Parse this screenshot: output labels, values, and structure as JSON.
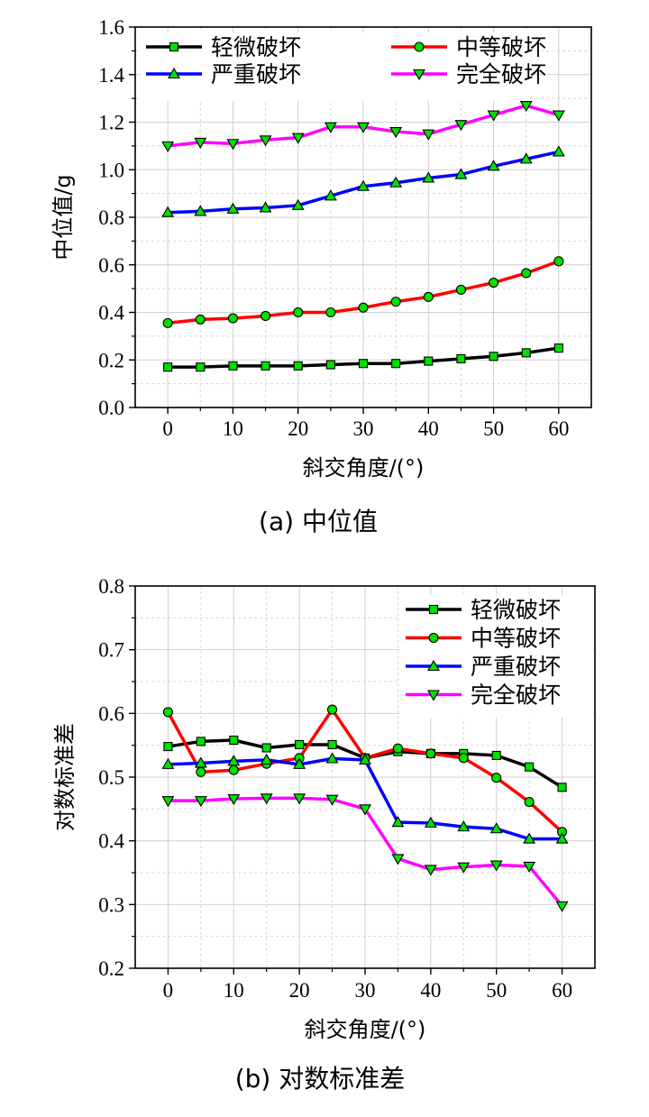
{
  "chart_data": [
    {
      "type": "line",
      "title": "",
      "caption": "(a)  中位值",
      "xlabel": "斜交角度/(°)",
      "ylabel": "中位值/g",
      "xlim": [
        -5,
        65
      ],
      "ylim": [
        0.0,
        1.6
      ],
      "xticks": [
        0,
        10,
        20,
        30,
        40,
        50,
        60
      ],
      "yticks": [
        0.0,
        0.2,
        0.4,
        0.6,
        0.8,
        1.0,
        1.2,
        1.4,
        1.6
      ],
      "ytick_labels": [
        "0.0",
        "0.2",
        "0.4",
        "0.6",
        "0.8",
        "1.0",
        "1.2",
        "1.4",
        "1.6"
      ],
      "grid": true,
      "legend_placement": "top-left",
      "legend_columns": 2,
      "x": [
        0,
        5,
        10,
        15,
        20,
        25,
        30,
        35,
        40,
        45,
        50,
        55,
        60
      ],
      "series": [
        {
          "name": "轻微破坏",
          "color": "#000000",
          "marker": "square",
          "values": [
            0.17,
            0.17,
            0.175,
            0.175,
            0.175,
            0.18,
            0.185,
            0.185,
            0.195,
            0.205,
            0.215,
            0.23,
            0.25
          ]
        },
        {
          "name": "中等破坏",
          "color": "#ff0000",
          "marker": "circle",
          "values": [
            0.355,
            0.37,
            0.375,
            0.385,
            0.4,
            0.4,
            0.42,
            0.445,
            0.465,
            0.495,
            0.525,
            0.565,
            0.615
          ]
        },
        {
          "name": "严重破坏",
          "color": "#0000ff",
          "marker": "triangle-up",
          "values": [
            0.82,
            0.825,
            0.835,
            0.84,
            0.85,
            0.89,
            0.93,
            0.945,
            0.965,
            0.98,
            1.015,
            1.045,
            1.075
          ]
        },
        {
          "name": "完全破坏",
          "color": "#ff00ff",
          "marker": "triangle-down",
          "values": [
            1.1,
            1.115,
            1.11,
            1.125,
            1.135,
            1.18,
            1.18,
            1.16,
            1.15,
            1.19,
            1.23,
            1.27,
            1.23
          ]
        }
      ]
    },
    {
      "type": "line",
      "title": "",
      "caption": "(b)  对数标准差",
      "xlabel": "斜交角度/(°)",
      "ylabel": "对数标准差",
      "xlim": [
        -5,
        65
      ],
      "ylim": [
        0.2,
        0.8
      ],
      "xticks": [
        0,
        10,
        20,
        30,
        40,
        50,
        60
      ],
      "yticks": [
        0.2,
        0.3,
        0.4,
        0.5,
        0.6,
        0.7,
        0.8
      ],
      "ytick_labels": [
        "0.2",
        "0.3",
        "0.4",
        "0.5",
        "0.6",
        "0.7",
        "0.8"
      ],
      "grid": true,
      "legend_placement": "top-right",
      "legend_columns": 1,
      "x": [
        0,
        5,
        10,
        15,
        20,
        25,
        30,
        35,
        40,
        45,
        50,
        55,
        60
      ],
      "series": [
        {
          "name": "轻微破坏",
          "color": "#000000",
          "marker": "square",
          "values": [
            0.548,
            0.556,
            0.558,
            0.546,
            0.551,
            0.551,
            0.53,
            0.54,
            0.537,
            0.537,
            0.534,
            0.516,
            0.484
          ]
        },
        {
          "name": "中等破坏",
          "color": "#ff0000",
          "marker": "circle",
          "values": [
            0.602,
            0.508,
            0.511,
            0.521,
            0.53,
            0.606,
            0.53,
            0.545,
            0.537,
            0.53,
            0.499,
            0.461,
            0.414
          ]
        },
        {
          "name": "严重破坏",
          "color": "#0000ff",
          "marker": "triangle-up",
          "values": [
            0.52,
            0.522,
            0.525,
            0.527,
            0.52,
            0.529,
            0.527,
            0.429,
            0.428,
            0.422,
            0.419,
            0.403,
            0.403
          ]
        },
        {
          "name": "完全破坏",
          "color": "#ff00ff",
          "marker": "triangle-down",
          "values": [
            0.463,
            0.463,
            0.466,
            0.467,
            0.467,
            0.465,
            0.45,
            0.372,
            0.355,
            0.359,
            0.362,
            0.36,
            0.298
          ]
        }
      ]
    }
  ],
  "marker_fill": "#00e000"
}
